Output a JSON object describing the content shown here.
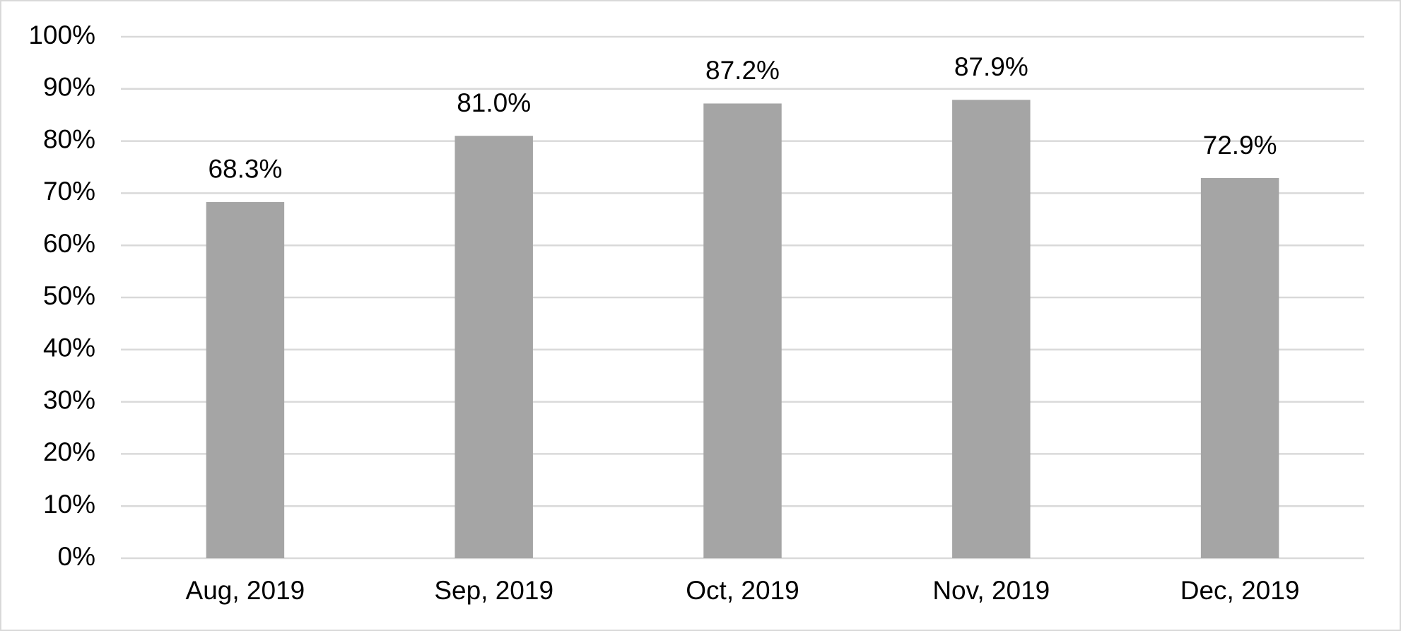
{
  "chart_data": {
    "type": "bar",
    "categories": [
      "Aug, 2019",
      "Sep, 2019",
      "Oct, 2019",
      "Nov, 2019",
      "Dec, 2019"
    ],
    "values": [
      68.3,
      81.0,
      87.2,
      87.9,
      72.9
    ],
    "value_labels": [
      "68.3%",
      "81.0%",
      "87.2%",
      "87.9%",
      "72.9%"
    ],
    "color": "#a5a5a5",
    "ylim": [
      0,
      100
    ],
    "yticks": [
      {
        "value": 0,
        "label": "0%"
      },
      {
        "value": 10,
        "label": "10%"
      },
      {
        "value": 20,
        "label": "20%"
      },
      {
        "value": 30,
        "label": "30%"
      },
      {
        "value": 40,
        "label": "40%"
      },
      {
        "value": 50,
        "label": "50%"
      },
      {
        "value": 60,
        "label": "60%"
      },
      {
        "value": 70,
        "label": "70%"
      },
      {
        "value": 80,
        "label": "80%"
      },
      {
        "value": 90,
        "label": "90%"
      },
      {
        "value": 100,
        "label": "100%"
      }
    ],
    "grid": true
  }
}
